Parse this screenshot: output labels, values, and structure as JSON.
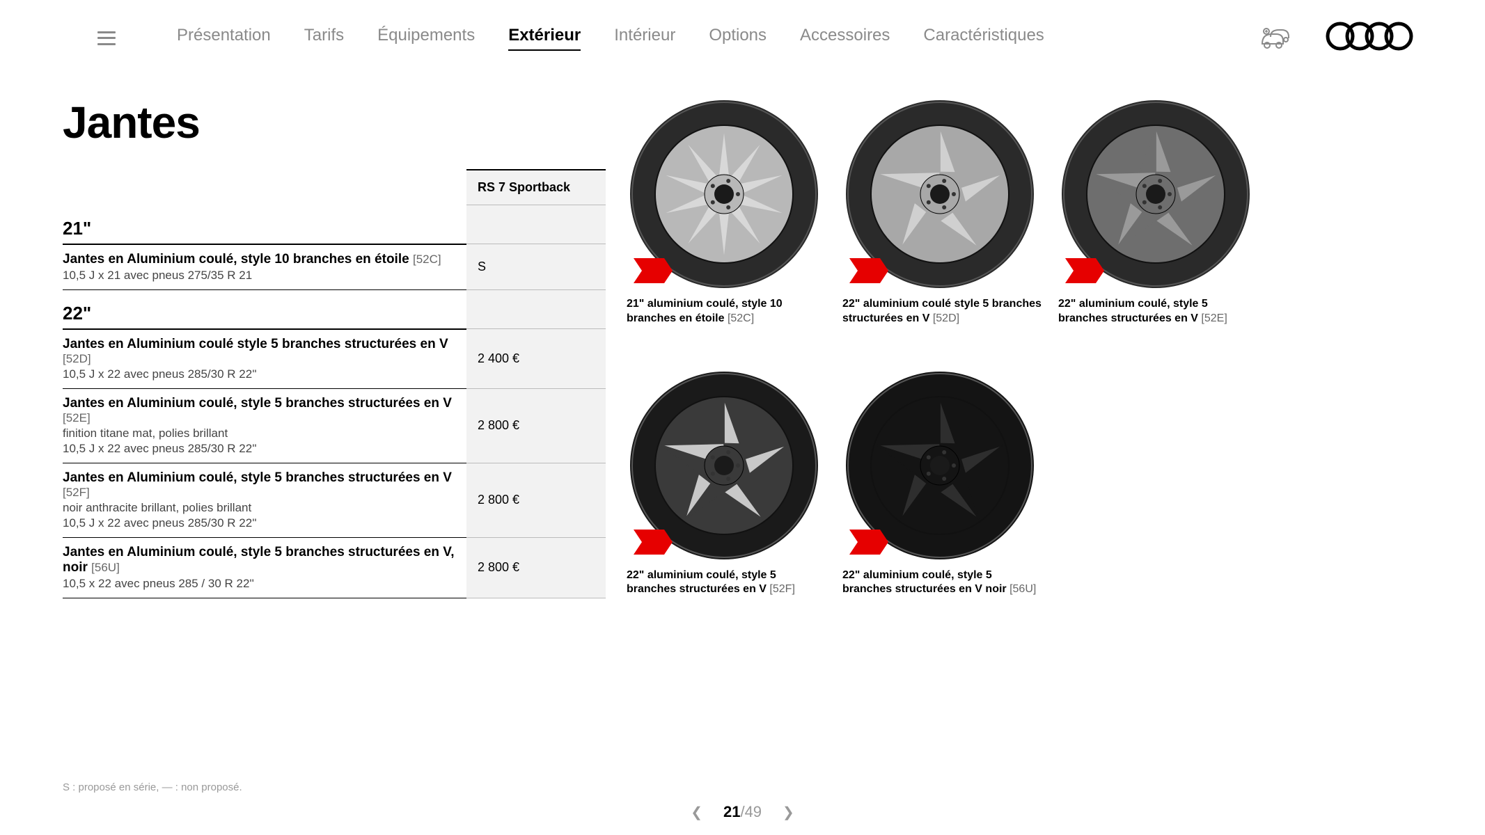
{
  "nav": {
    "items": [
      {
        "label": "Présentation"
      },
      {
        "label": "Tarifs"
      },
      {
        "label": "Équipements"
      },
      {
        "label": "Extérieur",
        "active": true
      },
      {
        "label": "Intérieur"
      },
      {
        "label": "Options"
      },
      {
        "label": "Accessoires"
      },
      {
        "label": "Caractéristiques"
      }
    ]
  },
  "page": {
    "title": "Jantes",
    "model_header": "RS 7 Sportback",
    "footnote": "S : proposé en série, — : non proposé.",
    "pager": {
      "current": "21",
      "sep": "/",
      "total": "49"
    }
  },
  "groups": [
    {
      "size": "21\"",
      "rows": [
        {
          "title": "Jantes en Aluminium coulé, style 10 branches en étoile",
          "code": "[52C]",
          "subs": [
            "10,5 J x 21 avec pneus 275/35 R 21"
          ],
          "price": "S"
        }
      ]
    },
    {
      "size": "22\"",
      "rows": [
        {
          "title": "Jantes en Aluminium coulé style 5 branches structurées en V",
          "code": "[52D]",
          "subs": [
            "10,5 J x 22 avec pneus 285/30 R 22''"
          ],
          "price": "2 400 €"
        },
        {
          "title": "Jantes en Aluminium coulé, style 5 branches structurées en V",
          "code": "[52E]",
          "subs": [
            "finition titane mat, polies brillant",
            "10,5 J x 22 avec pneus 285/30 R 22''"
          ],
          "price": "2 800 €"
        },
        {
          "title": "Jantes en Aluminium coulé, style 5 branches structurées en V",
          "code": "[52F]",
          "subs": [
            "noir anthracite brillant, polies brillant",
            "10,5 J x 22 avec pneus 285/30 R 22''"
          ],
          "price": "2 800 €"
        },
        {
          "title": "Jantes en Aluminium coulé, style 5 branches structurées en V, noir",
          "code": "[56U]",
          "subs": [
            "10,5 x 22 avec pneus 285 / 30 R 22''"
          ],
          "price": "2 800 €"
        }
      ]
    }
  ],
  "wheels": [
    {
      "caption": "21\" aluminium coulé, style 10 branches en étoile",
      "code": "[52C]",
      "style": "spoke10",
      "rim": "#d8d8d8",
      "rim2": "#b8b8b8",
      "tire": "#2a2a2a"
    },
    {
      "caption": "22\" aluminium coulé style 5 branches structurées en V",
      "code": "[52D]",
      "style": "v5",
      "rim": "#d0d0d0",
      "rim2": "#a8a8a8",
      "tire": "#2a2a2a"
    },
    {
      "caption": "22\" aluminium coulé, style 5 branches structurées en V",
      "code": "[52E]",
      "style": "v5",
      "rim": "#9a9a9a",
      "rim2": "#6e6e6e",
      "tire": "#2a2a2a"
    },
    {
      "caption": "22\" aluminium coulé, style 5 branches structurées en V",
      "code": "[52F]",
      "style": "v5",
      "rim": "#c8c8c8",
      "rim2": "#3a3a3a",
      "tire": "#1a1a1a"
    },
    {
      "caption": "22\" aluminium coulé, style 5 branches structurées en V noir",
      "code": "[56U]",
      "style": "v5",
      "rim": "#2e2e2e",
      "rim2": "#141414",
      "tire": "#141414"
    }
  ],
  "colors": {
    "accent_red": "#e60000",
    "nav_inactive": "#8a8a8a",
    "text": "#000000",
    "muted": "#999999",
    "table_bg": "#f2f2f2"
  }
}
